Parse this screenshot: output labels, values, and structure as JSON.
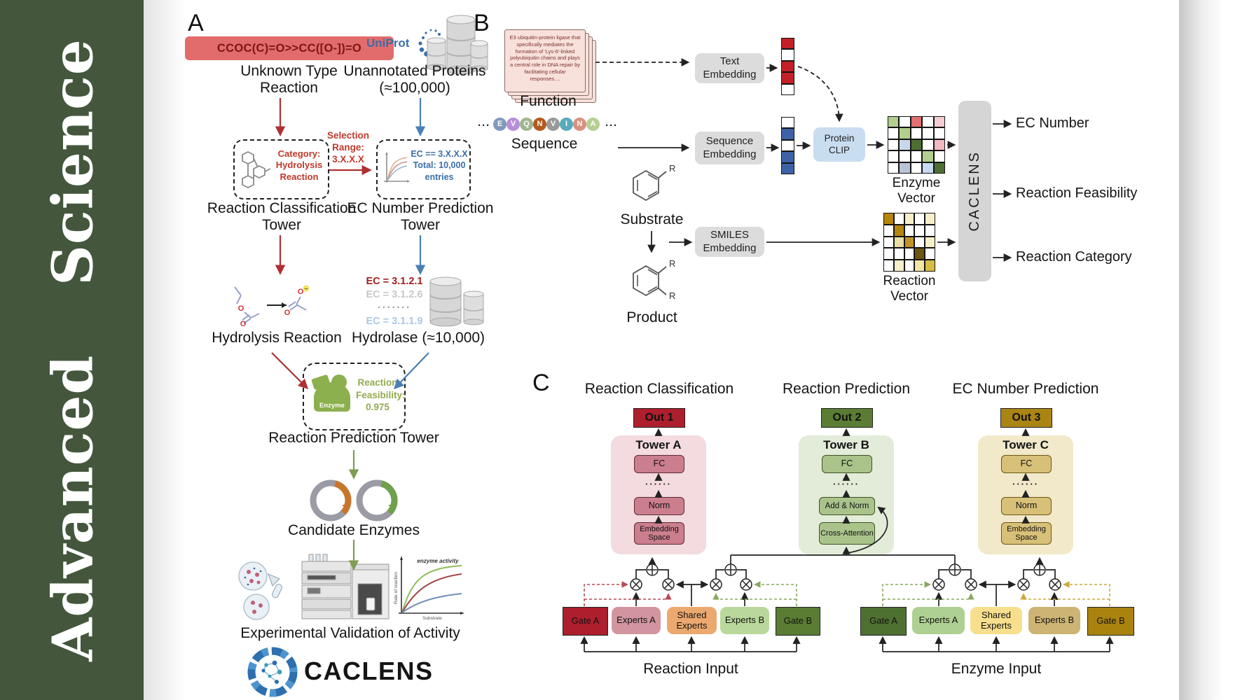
{
  "banner": {
    "title": "Advanced Science",
    "bg_color": "#44573d"
  },
  "panel_a": {
    "label": "A",
    "smiles": "CCOC(C)=O>>CC([O-])=O",
    "unknown_reaction_label": "Unknown Type Reaction",
    "uniprot": "UniProt",
    "unannotated_label": "Unannotated Proteins (≈100,000)",
    "category_text": "Category: Hydrolysis Reaction",
    "selection_text": "Selection Range: 3.X.X.X",
    "ec_box_text": "EC == 3.X.X.X Total: 10,000 entries",
    "classification_tower_label": "Reaction Classification Tower",
    "ec_tower_label": "EC Number Prediction Tower",
    "hydrolysis_label": "Hydrolysis Reaction",
    "ec_list": [
      "EC = 3.1.2.1",
      "EC = 3.1.2.6",
      "·······",
      "EC = 3.1.1.9"
    ],
    "hydrolase_label": "Hydrolase (≈10,000)",
    "enzyme_label": "Enzyme",
    "feasibility_text": "Reaction Feasibility: 0.975",
    "prediction_tower_label": "Reaction Prediction Tower",
    "candidate_label": "Candidate Enzymes",
    "validation_label": "Experimental Validation of Activity",
    "brand": "CACLENS",
    "activity_plot": {
      "annotation": "enzyme activity",
      "ylabel": "Rate of reaction",
      "xlabel": "Substrate"
    }
  },
  "panel_b": {
    "label": "B",
    "function_text": "E3 ubiquitin-protein ligase that specifically mediates the formation of 'Lys-6'-linked polyubiquitin chains and plays a central role in DNA repair by facilitating cellular responses....",
    "function_label": "Function",
    "ellipsis": "···",
    "sequence_letters": [
      "E",
      "V",
      "Q",
      "N",
      "V",
      "I",
      "N",
      "A"
    ],
    "sequence_colors": [
      "#8299bb",
      "#b78fd9",
      "#9fb68f",
      "#b2591d",
      "#9a9a9a",
      "#58abbc",
      "#d9917f",
      "#b6cf92"
    ],
    "sequence_label": "Sequence",
    "substrate_label": "Substrate",
    "product_label": "Product",
    "r_group": "R",
    "boxes": {
      "text": "Text Embedding",
      "sequence": "Sequence Embedding",
      "smiles": "SMILES Embedding",
      "clip": "Protein CLIP"
    },
    "text_vector": [
      "#c32027",
      "#ffffff",
      "#c32027",
      "#c32027",
      "#ffffff"
    ],
    "sequence_vector": [
      "#ffffff",
      "#3f62a7",
      "#ffffff",
      "#3f62a7",
      "#3f62a7"
    ],
    "enzyme_vector_label": "Enzyme Vector",
    "reaction_vector_label": "Reaction Vector",
    "enzyme_vector": [
      [
        "#b2d08d",
        "#ffffff",
        "#e2706f",
        "#ffffff",
        "#f6cdd3"
      ],
      [
        "#ffffff",
        "#b2d08d",
        "#ffffff",
        "#ffffff",
        "#ffffff"
      ],
      [
        "#ffffff",
        "#c8d8ec",
        "#4e6f33",
        "#ffffff",
        "#f2b9c1"
      ],
      [
        "#ffffff",
        "#ffffff",
        "#ffffff",
        "#b2d08d",
        "#ffffff"
      ],
      [
        "#ffffff",
        "#b9c4d6",
        "#ffffff",
        "#c6dbf2",
        "#4e6f33"
      ]
    ],
    "reaction_vector": [
      [
        "#b5860e",
        "#ffffff",
        "#f6efc9",
        "#ffffff",
        "#f6efc9"
      ],
      [
        "#ffffff",
        "#b5860e",
        "#ffffff",
        "#ffffff",
        "#ffffff"
      ],
      [
        "#ffffff",
        "#eadfa4",
        "#c2922a",
        "#ffffff",
        "#f6efc9"
      ],
      [
        "#ffffff",
        "#ffffff",
        "#ffffff",
        "#6e5512",
        "#ffffff"
      ],
      [
        "#ffffff",
        "#f6efc9",
        "#ffffff",
        "#f3e4a5",
        "#d9bc45"
      ]
    ],
    "model_name": "CACLENS",
    "outputs": [
      "EC Number",
      "Reaction Feasibility",
      "Reaction Category"
    ]
  },
  "panel_c": {
    "label": "C",
    "columns": [
      {
        "title": "Reaction Classification",
        "out": "Out 1",
        "tower": "Tower A",
        "fc": "FC",
        "dots": "······",
        "block3": "Norm",
        "block4": "Embedding Space"
      },
      {
        "title": "Reaction Prediction",
        "out": "Out 2",
        "tower": "Tower B",
        "fc": "FC",
        "dots": "······",
        "block3": "Add & Norm",
        "block4": "Cross-Attention"
      },
      {
        "title": "EC Number Prediction",
        "out": "Out 3",
        "tower": "Tower C",
        "fc": "FC",
        "dots": "······",
        "block3": "Norm",
        "block4": "Embedding Space"
      }
    ],
    "moe": [
      {
        "gate_a": "Gate A",
        "experts_a": "Experts A",
        "shared": "Shared Experts",
        "experts_b": "Experts B",
        "gate_b": "Gate B",
        "input": "Reaction Input"
      },
      {
        "gate_a": "Gate A",
        "experts_a": "Experts A",
        "shared": "Shared Experts",
        "experts_b": "Experts B",
        "gate_b": "Gate B",
        "input": "Enzyme Input"
      }
    ]
  },
  "colors": {
    "banner_green": "#44573d",
    "out1": "#ae1f2d",
    "out2": "#5a7d33",
    "out3": "#ab8514",
    "red_arrow": "#b03030",
    "blue_arrow": "#4a7fb5",
    "green_arrow": "#7f9d52"
  }
}
